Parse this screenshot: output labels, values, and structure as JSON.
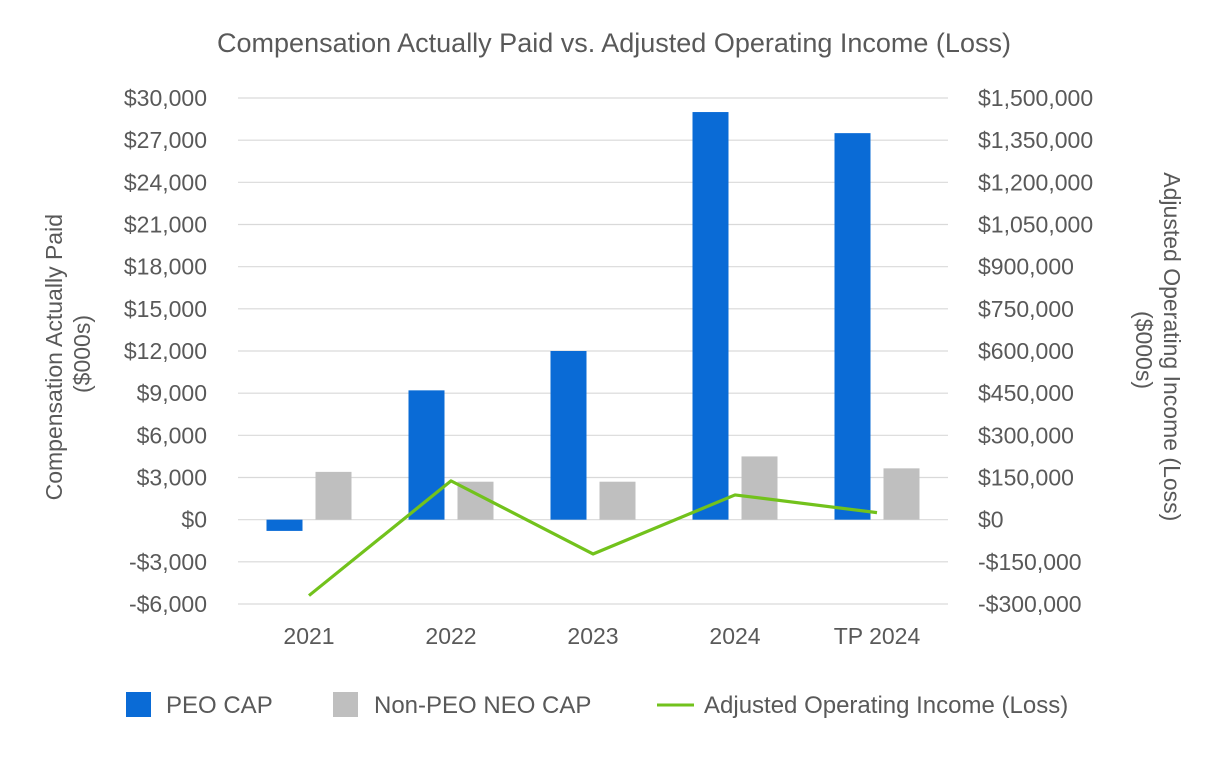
{
  "chart_data": {
    "type": "bar",
    "title": "Compensation Actually Paid vs. Adjusted Operating Income (Loss)",
    "categories": [
      "2021",
      "2022",
      "2023",
      "2024",
      "TP 2024"
    ],
    "ylabel": "Compensation Actually Paid ($000s)",
    "ylabel_lines": [
      "Compensation Actually Paid",
      "($000s)"
    ],
    "y2label": "Adjusted Operating Income (Loss) ($000s)",
    "y2label_lines": [
      "Adjusted Operating Income (Loss)",
      "($000s)"
    ],
    "ylim": [
      -6000,
      30000
    ],
    "y_ticks": [
      -6000,
      -3000,
      0,
      3000,
      6000,
      9000,
      12000,
      15000,
      18000,
      21000,
      24000,
      27000,
      30000
    ],
    "y_tick_labels": [
      "-$6,000",
      "-$3,000",
      "$0",
      "$3,000",
      "$6,000",
      "$9,000",
      "$12,000",
      "$15,000",
      "$18,000",
      "$21,000",
      "$24,000",
      "$27,000",
      "$30,000"
    ],
    "y2lim": [
      -300000,
      1500000
    ],
    "y2_ticks": [
      -300000,
      -150000,
      0,
      150000,
      300000,
      450000,
      600000,
      750000,
      900000,
      1050000,
      1200000,
      1350000,
      1500000
    ],
    "y2_tick_labels": [
      "-$300,000",
      "-$150,000",
      "$0",
      "$150,000",
      "$300,000",
      "$450,000",
      "$600,000",
      "$750,000",
      "$900,000",
      "$1,050,000",
      "$1,200,000",
      "$1,350,000",
      "$1,500,000"
    ],
    "grid": true,
    "legend_position": "bottom",
    "series": [
      {
        "name": "PEO CAP",
        "type": "bar",
        "axis": "left",
        "color": "#0a6bd6",
        "values": [
          -800,
          9200,
          12000,
          29000,
          27500
        ]
      },
      {
        "name": "Non-PEO NEO CAP",
        "type": "bar",
        "axis": "left",
        "color": "#bfbfbf",
        "values": [
          3400,
          2700,
          2700,
          4500,
          3650
        ]
      },
      {
        "name": "Adjusted Operating Income (Loss)",
        "type": "line",
        "axis": "right",
        "color": "#72c21c",
        "values": [
          -270000,
          138000,
          -122000,
          88000,
          25000
        ]
      }
    ]
  }
}
